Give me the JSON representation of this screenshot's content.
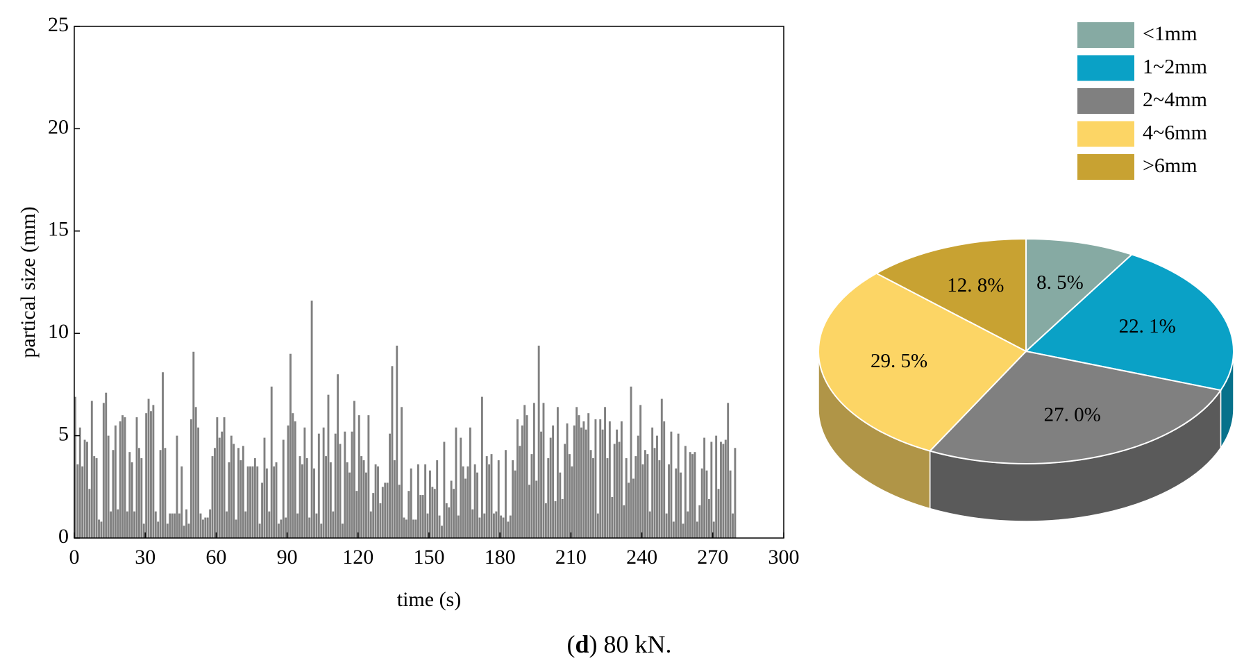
{
  "chart_data": [
    {
      "type": "bar",
      "x_label": "time (s)",
      "y_label": "partical size (mm)",
      "color": "#808080",
      "xlim": [
        0,
        300
      ],
      "xticks": [
        0,
        30,
        60,
        90,
        120,
        150,
        180,
        210,
        240,
        270,
        300
      ],
      "ylim": [
        0,
        25
      ],
      "yticks": [
        0,
        5,
        10,
        15,
        20,
        25
      ],
      "x": [
        0,
        1,
        2,
        3,
        4,
        5,
        6,
        7,
        8,
        9,
        10,
        11,
        12,
        13,
        14,
        15,
        16,
        17,
        18,
        19,
        20,
        21,
        22,
        23,
        24,
        25,
        26,
        27,
        28,
        29,
        30,
        31,
        32,
        33,
        34,
        35,
        36,
        37,
        38,
        39,
        40,
        41,
        42,
        43,
        44,
        45,
        46,
        47,
        48,
        49,
        50,
        51,
        52,
        53,
        54,
        55,
        56,
        57,
        58,
        59,
        60,
        61,
        62,
        63,
        64,
        65,
        66,
        67,
        68,
        69,
        70,
        71,
        72,
        73,
        74,
        75,
        76,
        77,
        78,
        79,
        80,
        81,
        82,
        83,
        84,
        85,
        86,
        87,
        88,
        89,
        90,
        91,
        92,
        93,
        94,
        95,
        96,
        97,
        98,
        99,
        100,
        101,
        102,
        103,
        104,
        105,
        106,
        107,
        108,
        109,
        110,
        111,
        112,
        113,
        114,
        115,
        116,
        117,
        118,
        119,
        120,
        121,
        122,
        123,
        124,
        125,
        126,
        127,
        128,
        129,
        130,
        131,
        132,
        133,
        134,
        135,
        136,
        137,
        138,
        139,
        140,
        141,
        142,
        143,
        144,
        145,
        146,
        147,
        148,
        149,
        150,
        151,
        152,
        153,
        154,
        155,
        156,
        157,
        158,
        159,
        160,
        161,
        162,
        163,
        164,
        165,
        166,
        167,
        168,
        169,
        170,
        171,
        172,
        173,
        174,
        175,
        176,
        177,
        178,
        179,
        180,
        181,
        182,
        183,
        184,
        185,
        186,
        187,
        188,
        189,
        190,
        191,
        192,
        193,
        194,
        195,
        196,
        197,
        198,
        199,
        200,
        201,
        202,
        203,
        204,
        205,
        206,
        207,
        208,
        209,
        210,
        211,
        212,
        213,
        214,
        215,
        216,
        217,
        218,
        219,
        220,
        221,
        222,
        223,
        224,
        225,
        226,
        227,
        228,
        229,
        230,
        231,
        232,
        233,
        234,
        235,
        236,
        237,
        238,
        239,
        240,
        241,
        242,
        243,
        244,
        245,
        246,
        247,
        248,
        249,
        250,
        251,
        252,
        253,
        254,
        255,
        256,
        257,
        258,
        259,
        260,
        261,
        262,
        263,
        264,
        265,
        266,
        267,
        268,
        269,
        270,
        271,
        272,
        273,
        274,
        275,
        276,
        277,
        278,
        279
      ],
      "values": [
        6.9,
        3.6,
        5.4,
        3.5,
        4.8,
        4.7,
        2.4,
        6.7,
        4.0,
        3.9,
        0.9,
        0.8,
        6.6,
        7.1,
        5.0,
        1.3,
        4.3,
        5.5,
        1.4,
        5.7,
        6.0,
        5.9,
        1.3,
        4.2,
        3.7,
        1.3,
        5.9,
        4.4,
        3.9,
        0.7,
        6.1,
        6.8,
        6.2,
        6.5,
        1.3,
        0.8,
        4.3,
        8.1,
        4.4,
        0.7,
        1.2,
        1.2,
        1.2,
        5.0,
        1.2,
        3.5,
        0.6,
        1.4,
        0.7,
        5.8,
        9.1,
        6.4,
        5.4,
        1.2,
        0.9,
        1.0,
        1.0,
        1.4,
        4.0,
        4.4,
        5.9,
        4.9,
        5.2,
        5.9,
        1.3,
        3.7,
        5.0,
        4.6,
        0.9,
        4.4,
        3.8,
        4.5,
        1.3,
        3.5,
        3.5,
        3.5,
        3.9,
        3.5,
        0.7,
        2.7,
        4.9,
        3.4,
        1.3,
        7.4,
        3.5,
        3.7,
        0.7,
        0.9,
        4.8,
        1.0,
        5.5,
        9.0,
        6.1,
        5.7,
        1.2,
        4.0,
        3.6,
        5.4,
        3.9,
        1.0,
        11.6,
        3.4,
        1.2,
        5.1,
        0.7,
        5.4,
        4.0,
        7.0,
        3.7,
        1.3,
        5.1,
        8.0,
        4.6,
        0.7,
        5.2,
        3.7,
        3.2,
        5.2,
        6.7,
        2.3,
        6.0,
        4.0,
        3.8,
        3.2,
        6.0,
        1.3,
        2.2,
        3.6,
        3.5,
        1.7,
        2.5,
        2.7,
        2.7,
        5.1,
        8.4,
        3.8,
        9.4,
        2.6,
        6.4,
        1.0,
        0.9,
        2.3,
        3.4,
        0.9,
        0.9,
        3.6,
        2.1,
        2.1,
        3.6,
        1.2,
        3.3,
        2.5,
        2.4,
        3.8,
        1.1,
        0.6,
        4.7,
        1.7,
        1.5,
        2.8,
        2.4,
        5.4,
        1.1,
        4.9,
        3.5,
        2.9,
        3.5,
        5.4,
        1.4,
        3.6,
        3.2,
        1.0,
        6.9,
        1.2,
        4.0,
        3.6,
        4.1,
        1.2,
        1.3,
        3.8,
        1.1,
        1.0,
        4.3,
        0.8,
        1.1,
        3.8,
        3.3,
        5.8,
        4.5,
        5.5,
        6.5,
        6.0,
        2.6,
        4.1,
        6.6,
        2.8,
        9.4,
        5.2,
        6.6,
        1.7,
        3.9,
        4.9,
        5.5,
        1.8,
        6.4,
        3.2,
        1.9,
        4.6,
        5.6,
        4.1,
        3.5,
        5.5,
        6.4,
        6.0,
        5.4,
        5.7,
        5.3,
        6.1,
        4.3,
        3.9,
        5.8,
        1.2,
        5.8,
        5.3,
        6.4,
        3.9,
        5.7,
        2.0,
        4.6,
        5.3,
        4.7,
        5.7,
        1.6,
        3.9,
        2.7,
        7.4,
        2.9,
        4.0,
        5.0,
        6.5,
        3.6,
        4.3,
        4.1,
        1.3,
        5.4,
        4.4,
        5.0,
        3.8,
        6.8,
        5.7,
        1.2,
        3.6,
        5.2,
        0.8,
        3.4,
        5.1,
        3.2,
        0.7,
        4.5,
        1.3,
        4.2,
        4.1,
        4.2,
        0.8,
        1.6,
        3.4,
        4.9,
        3.3,
        1.9,
        4.7,
        0.8,
        5.0,
        2.4,
        4.7,
        4.6,
        4.8,
        6.6,
        3.3,
        1.2,
        4.4
      ]
    },
    {
      "type": "pie",
      "legend": "top-right",
      "categories": [
        "<1mm",
        "1~2mm",
        "2~4mm",
        "4~6mm",
        ">6mm"
      ],
      "values": [
        8.5,
        22.1,
        27.0,
        29.5,
        12.8
      ],
      "value_labels": [
        "8. 5%",
        "22. 1%",
        "27. 0%",
        "29. 5%",
        "12. 8%"
      ],
      "colors": [
        "#86aaa3",
        "#0aa1c6",
        "#808080",
        "#fcd565",
        "#c8a232"
      ]
    }
  ],
  "caption": [
    "(",
    "d",
    ") 80 kN."
  ]
}
